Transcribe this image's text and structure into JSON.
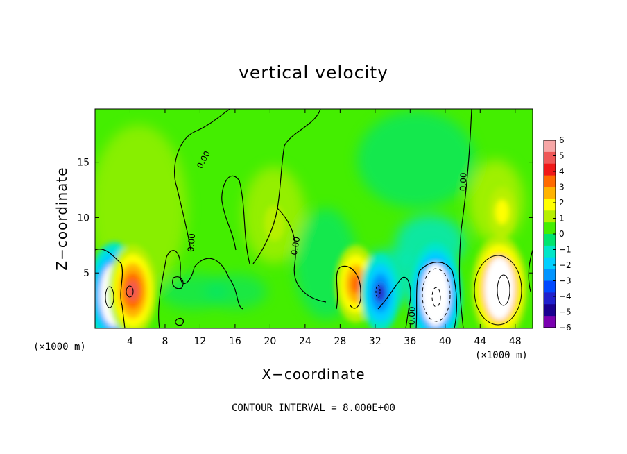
{
  "chart_data": {
    "type": "heatmap",
    "title": "vertical velocity",
    "xlabel": "X−coordinate",
    "ylabel": "Z−coordinate",
    "x_unit": "(×1000 m)",
    "xlim": [
      0,
      50
    ],
    "ylim": [
      0,
      19.8
    ],
    "x_ticks": [
      4,
      8,
      12,
      16,
      20,
      24,
      28,
      32,
      36,
      40,
      44,
      48
    ],
    "x_tick_labels": [
      "4",
      "8",
      "12",
      "16",
      "20",
      "24",
      "28",
      "32",
      "36",
      "40",
      "44",
      "48"
    ],
    "y_ticks": [
      5,
      10,
      15
    ],
    "y_tick_labels": [
      "5",
      "10",
      "15"
    ],
    "colorbar": {
      "min": -6,
      "max": 6,
      "tick_labels": [
        "6",
        "5",
        "4",
        "3",
        "2",
        "1",
        "0",
        "−1",
        "−2",
        "−3",
        "−4",
        "−5",
        "−6"
      ],
      "colors": [
        "#f7a6a6",
        "#ef5757",
        "#f01818",
        "#ff6a00",
        "#ffb300",
        "#ffff00",
        "#b6f000",
        "#44ee00",
        "#00e56e",
        "#00e6c8",
        "#00cfff",
        "#0094ff",
        "#0048ff",
        "#2020cc",
        "#1a0090",
        "#7a00b0"
      ]
    },
    "contour_labels": [
      "0.00",
      "0.00",
      "0.00",
      "0.00",
      "0.00"
    ],
    "contour_interval_text": "CONTOUR INTERVAL = 8.000E+00",
    "features": [
      {
        "kind": "downdraft",
        "x": 2.2,
        "z": 3.0,
        "w": -6
      },
      {
        "kind": "updraft",
        "x": 4.3,
        "z": 3.4,
        "w": 5
      },
      {
        "kind": "updraft",
        "x": 29.8,
        "z": 4.0,
        "w": 4
      },
      {
        "kind": "downdraft",
        "x": 32.6,
        "z": 3.2,
        "w": -4
      },
      {
        "kind": "downdraft",
        "x": 38.9,
        "z": 3.0,
        "w": -6
      },
      {
        "kind": "updraft",
        "x": 46.2,
        "z": 3.6,
        "w": 6
      },
      {
        "kind": "updraft",
        "x": 20.5,
        "z": 9.5,
        "w": 1
      },
      {
        "kind": "updraft",
        "x": 46.5,
        "z": 10.5,
        "w": 2
      }
    ]
  }
}
